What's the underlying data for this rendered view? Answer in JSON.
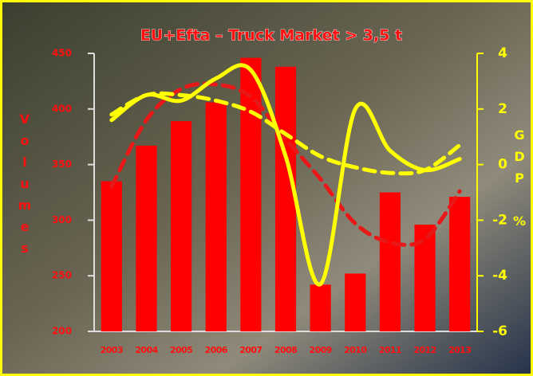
{
  "chart_data": {
    "type": "bar",
    "title": "EU+Efta – Truck Market > 3,5 t",
    "ylabel": "Volumes",
    "y2label": "GDP %",
    "categories": [
      "2003",
      "2004",
      "2005",
      "2006",
      "2007",
      "2008",
      "2009",
      "2010",
      "2011",
      "2012",
      "2013"
    ],
    "ylim": [
      200,
      450
    ],
    "yticks": [
      200,
      250,
      300,
      350,
      400,
      450
    ],
    "y2lim": [
      -6,
      4
    ],
    "y2ticks": [
      -6,
      -4,
      -2,
      0,
      2,
      4
    ],
    "series": [
      {
        "style": "bar",
        "color": "#ff0000",
        "values": [
          335,
          367,
          389,
          406,
          446,
          438,
          242,
          252,
          325,
          296,
          321
        ]
      },
      {
        "style": "line",
        "dashed": true,
        "color": "#e81818",
        "values": [
          330,
          390,
          418,
          422,
          411,
          373,
          337,
          297,
          280,
          283,
          326
        ]
      },
      {
        "style": "line",
        "dashed": false,
        "color": "#ffff00",
        "axis": "y2",
        "values": [
          1.6,
          2.5,
          2.3,
          3.1,
          3.4,
          0.3,
          -4.3,
          2.0,
          0.5,
          -0.2,
          0.2
        ]
      },
      {
        "style": "line",
        "dashed": true,
        "color": "#ffff00",
        "axis": "y2",
        "values": [
          1.8,
          2.5,
          2.5,
          2.3,
          1.9,
          1.1,
          0.3,
          -0.1,
          -0.3,
          -0.2,
          0.7
        ]
      }
    ]
  }
}
